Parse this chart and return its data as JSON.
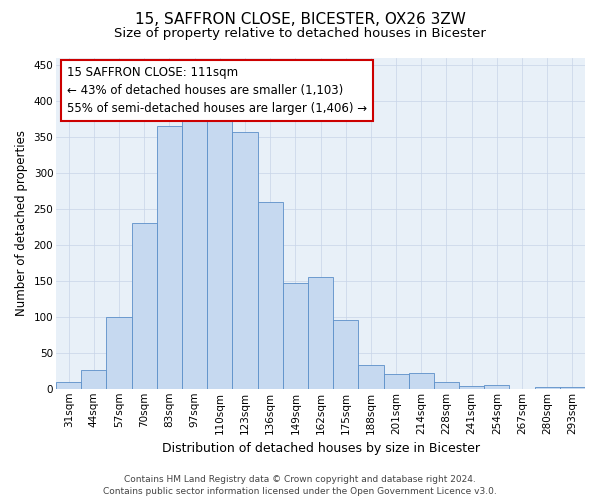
{
  "title_line1": "15, SAFFRON CLOSE, BICESTER, OX26 3ZW",
  "title_line2": "Size of property relative to detached houses in Bicester",
  "xlabel": "Distribution of detached houses by size in Bicester",
  "ylabel": "Number of detached properties",
  "categories": [
    "31sqm",
    "44sqm",
    "57sqm",
    "70sqm",
    "83sqm",
    "97sqm",
    "110sqm",
    "123sqm",
    "136sqm",
    "149sqm",
    "162sqm",
    "175sqm",
    "188sqm",
    "201sqm",
    "214sqm",
    "228sqm",
    "241sqm",
    "254sqm",
    "267sqm",
    "280sqm",
    "293sqm"
  ],
  "values": [
    10,
    26,
    100,
    230,
    365,
    372,
    375,
    357,
    260,
    147,
    155,
    95,
    33,
    20,
    22,
    10,
    4,
    5,
    0,
    3,
    2
  ],
  "bar_color": "#c6d9f0",
  "bar_edge_color": "#5b8fc9",
  "annotation_line1": "15 SAFFRON CLOSE: 111sqm",
  "annotation_line2": "← 43% of detached houses are smaller (1,103)",
  "annotation_line3": "55% of semi-detached houses are larger (1,406) →",
  "annotation_box_edge_color": "#cc0000",
  "annotation_box_face_color": "#ffffff",
  "ylim_max": 460,
  "yticks": [
    0,
    50,
    100,
    150,
    200,
    250,
    300,
    350,
    400,
    450
  ],
  "footer_line1": "Contains HM Land Registry data © Crown copyright and database right 2024.",
  "footer_line2": "Contains public sector information licensed under the Open Government Licence v3.0.",
  "bg_color": "#ffffff",
  "plot_bg_color": "#e8f0f8",
  "grid_color": "#c8d4e8",
  "title1_fontsize": 11,
  "title2_fontsize": 9.5,
  "xlabel_fontsize": 9,
  "ylabel_fontsize": 8.5,
  "tick_fontsize": 7.5,
  "annotation_fontsize": 8.5,
  "footer_fontsize": 6.5
}
